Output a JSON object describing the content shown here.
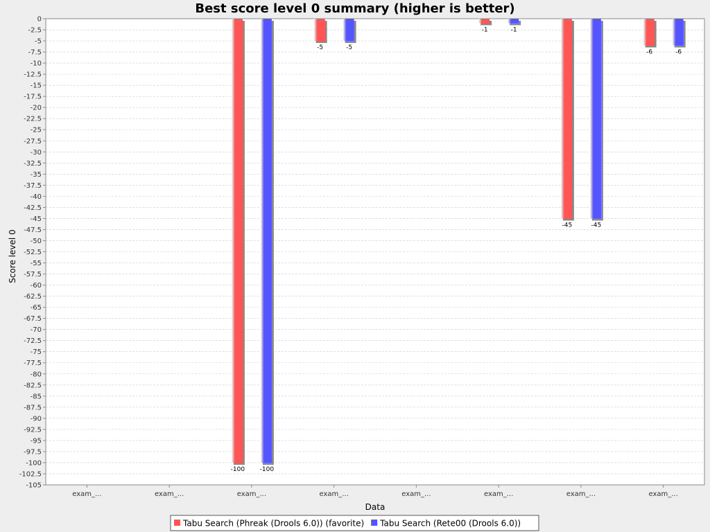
{
  "chart_data": {
    "type": "bar",
    "title": "Best score level 0 summary (higher is better)",
    "xlabel": "Data",
    "ylabel": "Score level 0",
    "ylim": [
      -105,
      0
    ],
    "ytick_step": 2.5,
    "grid": true,
    "legend_position": "bottom",
    "categories": [
      "exam_...",
      "exam_...",
      "exam_...",
      "exam_...",
      "exam_...",
      "exam_...",
      "exam_...",
      "exam_..."
    ],
    "series": [
      {
        "name": "Tabu Search (Phreak (Drools 6.0)) (favorite)",
        "color": "#ff5555",
        "values": [
          null,
          null,
          -100,
          -5,
          null,
          -1,
          -45,
          -6
        ]
      },
      {
        "name": "Tabu Search (Rete00 (Drools 6.0))",
        "color": "#5555ff",
        "values": [
          null,
          null,
          -100,
          -5,
          null,
          -1,
          -45,
          -6
        ]
      }
    ]
  }
}
